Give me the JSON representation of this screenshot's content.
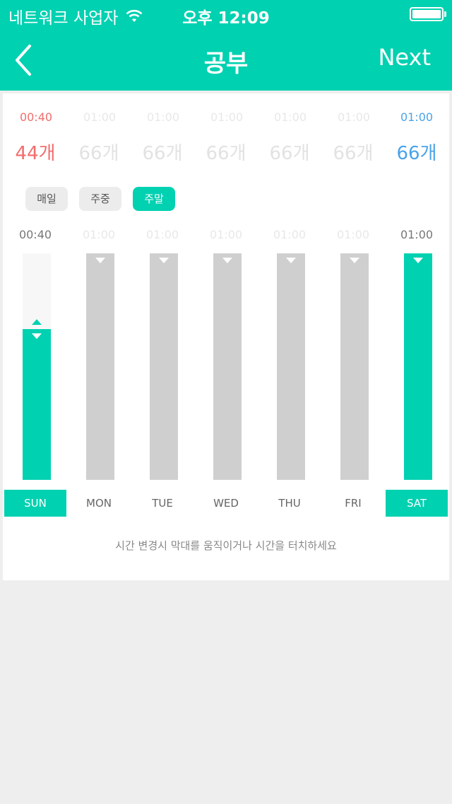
{
  "status_bar": {
    "carrier": "네트워크 사업자",
    "time": "오후 12:09"
  },
  "nav": {
    "title": "공부",
    "next": "Next"
  },
  "top_times": [
    "00:40",
    "01:00",
    "01:00",
    "01:00",
    "01:00",
    "01:00",
    "01:00"
  ],
  "counts": [
    "44개",
    "66개",
    "66개",
    "66개",
    "66개",
    "66개",
    "66개"
  ],
  "toggles": [
    {
      "label": "매일",
      "active": false
    },
    {
      "label": "주중",
      "active": false
    },
    {
      "label": "주말",
      "active": true
    }
  ],
  "bar_times": [
    "00:40",
    "01:00",
    "01:00",
    "01:00",
    "01:00",
    "01:00",
    "01:00"
  ],
  "bars": [
    {
      "fill_fraction": 0.667,
      "active": true
    },
    {
      "fill_fraction": 1.0,
      "active": false
    },
    {
      "fill_fraction": 1.0,
      "active": false
    },
    {
      "fill_fraction": 1.0,
      "active": false
    },
    {
      "fill_fraction": 1.0,
      "active": false
    },
    {
      "fill_fraction": 1.0,
      "active": false
    },
    {
      "fill_fraction": 1.0,
      "active": true
    }
  ],
  "days": [
    {
      "label": "SUN",
      "active": true
    },
    {
      "label": "MON",
      "active": false
    },
    {
      "label": "TUE",
      "active": false
    },
    {
      "label": "WED",
      "active": false
    },
    {
      "label": "THU",
      "active": false
    },
    {
      "label": "FRI",
      "active": false
    },
    {
      "label": "SAT",
      "active": true
    }
  ],
  "hint": "시간 변경시 막대를 움직이거나 시간을 터치하세요",
  "colors": {
    "accent": "#00d1b1",
    "red": "#f26d6d",
    "blue": "#4aa3e8",
    "bar_inactive": "#cfcfcf"
  }
}
